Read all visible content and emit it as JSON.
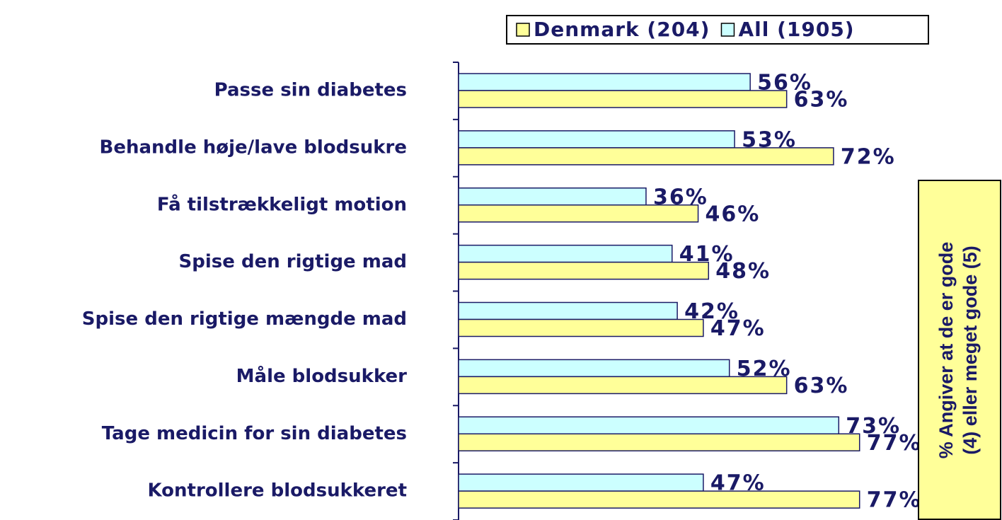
{
  "chart_data": {
    "type": "bar",
    "orientation": "horizontal",
    "categories": [
      "Passe sin diabetes",
      "Behandle høje/lave blodsukre",
      "Få tilstrækkeligt motion",
      "Spise den rigtige mad",
      "Spise den rigtige mængde mad",
      "Måle blodsukker",
      "Tage medicin for sin diabetes",
      "Kontrollere blodsukkeret"
    ],
    "series": [
      {
        "name": "Denmark (204)",
        "color": "#ffff99",
        "values": [
          63,
          72,
          46,
          48,
          47,
          63,
          77,
          77
        ],
        "value_labels": [
          "63%",
          "72%",
          "46%",
          "48%",
          "47%",
          "63%",
          "77%",
          "77%"
        ]
      },
      {
        "name": "All (1905)",
        "color": "#ccffff",
        "values": [
          56,
          53,
          36,
          41,
          42,
          52,
          73,
          47
        ],
        "value_labels": [
          "56%",
          "53%",
          "36%",
          "41%",
          "42%",
          "52%",
          "73%",
          "47%"
        ]
      }
    ],
    "xlim": [
      0,
      100
    ],
    "annotation": [
      "% Angiver at de er gode",
      "(4) eller meget gode (5)"
    ]
  }
}
